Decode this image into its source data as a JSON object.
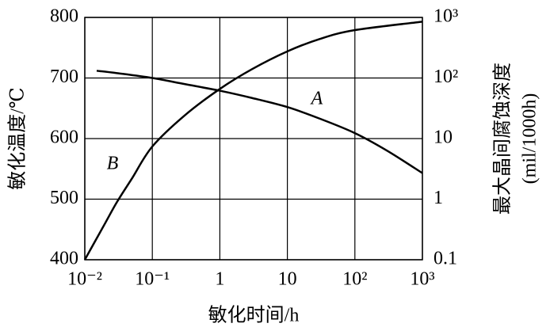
{
  "chart_data": {
    "type": "line",
    "xlabel": "敏化时间/h",
    "ylabel": "敏化温度/℃",
    "y2label": [
      "最大晶间腐蚀深度",
      "(mil/1000h)"
    ],
    "xscale": "log",
    "y2scale": "log",
    "grid": true,
    "color": "#000000",
    "xlim": [
      0.01,
      1000
    ],
    "xticks": [
      {
        "value": 0.01,
        "label": "10⁻²"
      },
      {
        "value": 0.1,
        "label": "10⁻¹"
      },
      1,
      10,
      {
        "value": 100,
        "label": "10²"
      },
      {
        "value": 1000,
        "label": "10³"
      }
    ],
    "ylim": [
      400,
      800
    ],
    "yticks": [
      400,
      500,
      600,
      700,
      800
    ],
    "y2lim": [
      0.1,
      1000
    ],
    "y2ticks": [
      0.1,
      1,
      10,
      {
        "value": 100,
        "label": "10²"
      },
      {
        "value": 1000,
        "label": "10³"
      }
    ],
    "series": [
      {
        "name": "A",
        "color": "#000000",
        "axis": "y",
        "x": [
          0.015,
          0.03,
          0.1,
          0.3,
          1,
          3,
          10,
          30,
          100,
          300,
          1000
        ],
        "values": [
          712,
          708,
          700,
          690,
          679,
          667,
          652,
          633,
          609,
          580,
          543
        ]
      },
      {
        "name": "B",
        "color": "#000000",
        "axis": "y2",
        "x": [
          0.01,
          0.02,
          0.03,
          0.05,
          0.1,
          0.3,
          1,
          3,
          10,
          30,
          100,
          1000
        ],
        "values": [
          0.1,
          0.4,
          0.9,
          2.2,
          7.4,
          24,
          66,
          140,
          275,
          440,
          617,
          850
        ]
      }
    ]
  }
}
